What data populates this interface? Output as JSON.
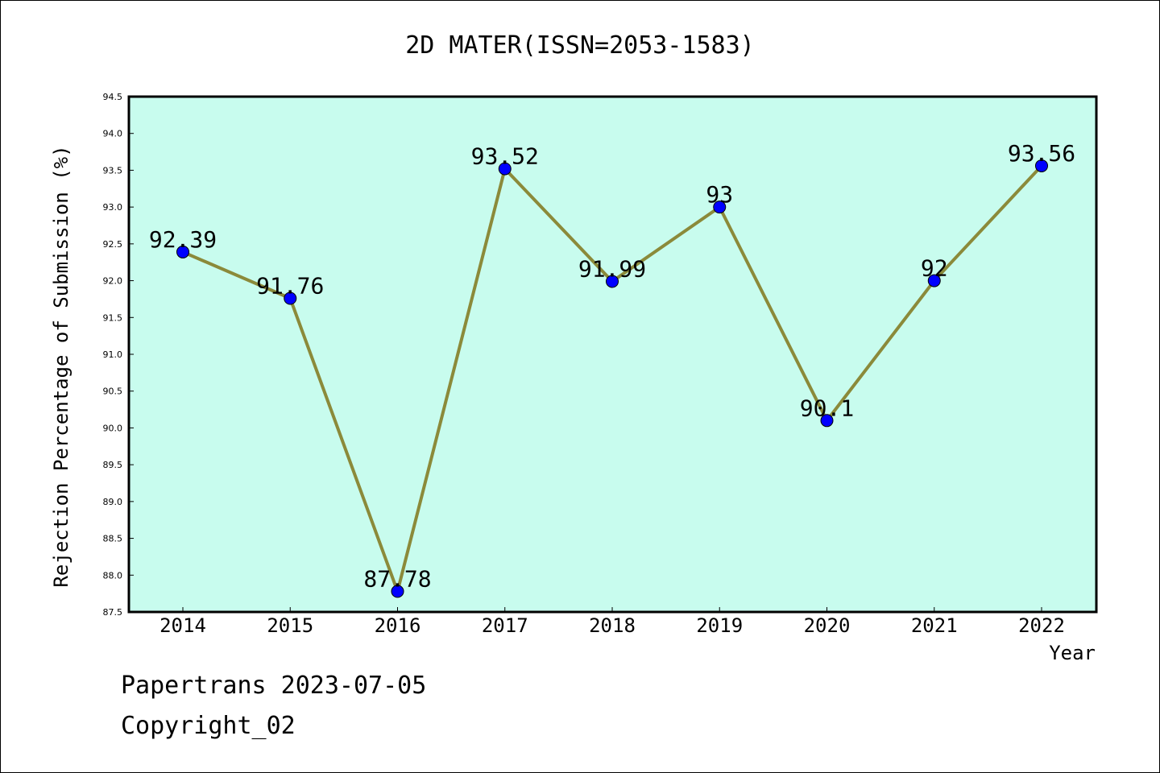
{
  "chart_data": {
    "type": "line",
    "title": "2D MATER(ISSN=2053-1583)",
    "xlabel": "Year",
    "ylabel": "Rejection Percentage of Submission (%)",
    "categories": [
      "2014",
      "2015",
      "2016",
      "2017",
      "2018",
      "2019",
      "2020",
      "2021",
      "2022"
    ],
    "values": [
      92.39,
      91.76,
      87.78,
      93.52,
      91.99,
      93,
      90.1,
      92,
      93.56
    ],
    "data_labels": [
      "92.39",
      "91.76",
      "87.78",
      "93.52",
      "91.99",
      "93",
      "90.1",
      "92",
      "93.56"
    ],
    "ylim": [
      87.5,
      94.5
    ],
    "yticks": [
      "87.5",
      "88.0",
      "88.5",
      "89.0",
      "89.5",
      "90.0",
      "90.5",
      "91.0",
      "91.5",
      "92.0",
      "92.5",
      "93.0",
      "93.5",
      "94.0",
      "94.5"
    ],
    "grid": false,
    "colors": {
      "plot_background": "#c8fcee",
      "line": "#8b8a3a",
      "marker": "#0000ff"
    }
  },
  "footer": {
    "line1": "Papertrans 2023-07-05",
    "line2": "Copyright_02"
  }
}
